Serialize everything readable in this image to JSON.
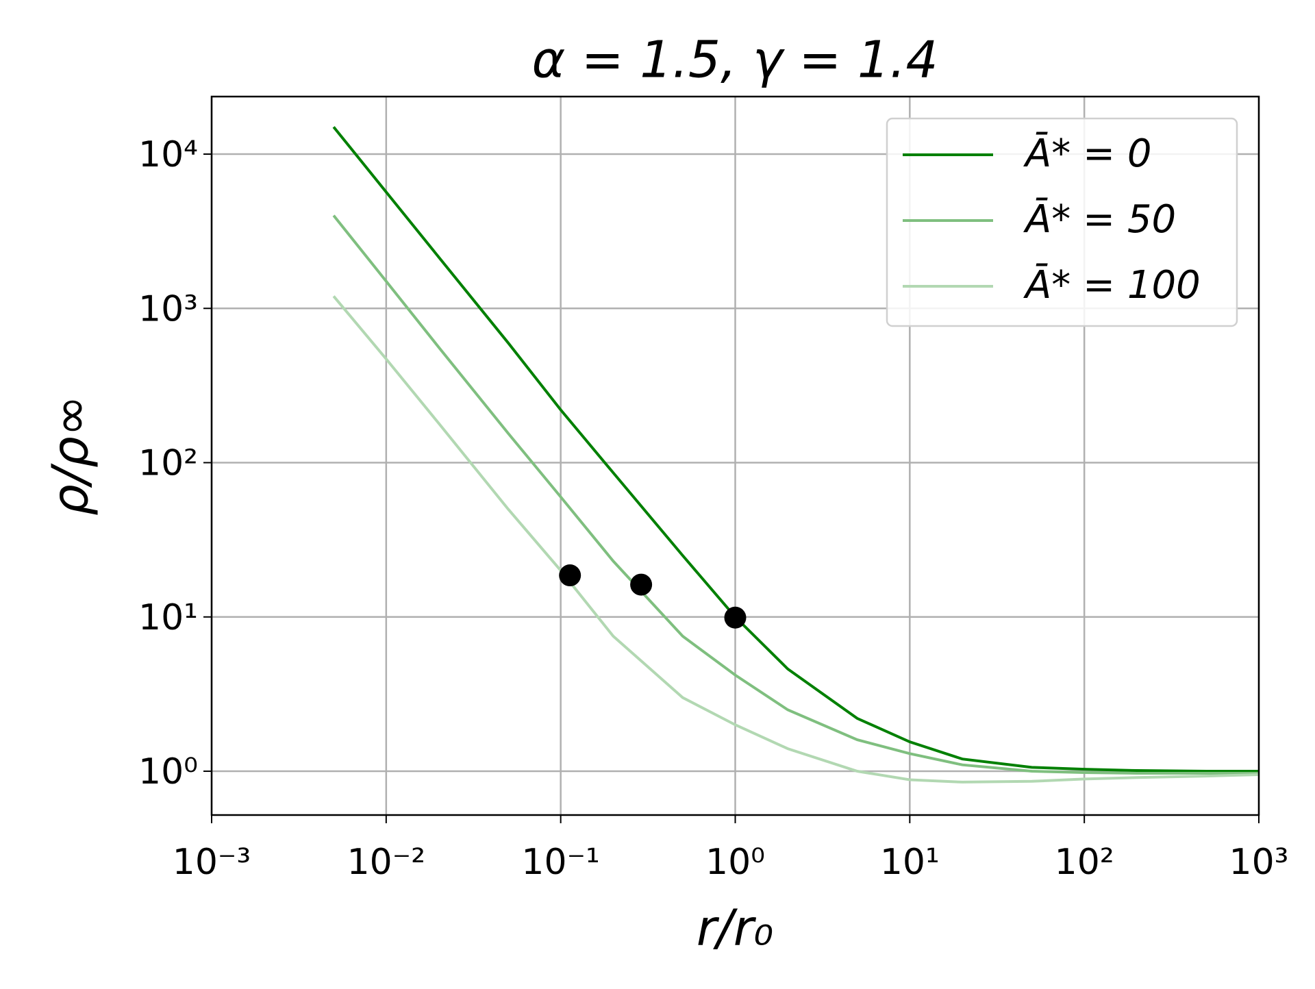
{
  "chart_data": {
    "type": "line",
    "title": "α = 1.5, γ = 1.4",
    "x_label": "r/r₀",
    "y_label": "ρ/ρ∞",
    "log_x": true,
    "log_y": true,
    "grid": true,
    "legend": "upper right",
    "xlim": [
      0.001,
      1000
    ],
    "ylim": [
      0.52,
      23600
    ],
    "xticks": [
      {
        "value": 0.001,
        "label": "10⁻³"
      },
      {
        "value": 0.01,
        "label": "10⁻²"
      },
      {
        "value": 0.1,
        "label": "10⁻¹"
      },
      {
        "value": 1,
        "label": "10⁰"
      },
      {
        "value": 10,
        "label": "10¹"
      },
      {
        "value": 100,
        "label": "10²"
      },
      {
        "value": 1000,
        "label": "10³"
      }
    ],
    "yticks": [
      {
        "value": 1,
        "label": "10⁰"
      },
      {
        "value": 10,
        "label": "10¹"
      },
      {
        "value": 100,
        "label": "10²"
      },
      {
        "value": 1000,
        "label": "10³"
      },
      {
        "value": 10000,
        "label": "10⁴"
      }
    ],
    "x": [
      0.005,
      0.01,
      0.02,
      0.05,
      0.1,
      0.2,
      0.5,
      1,
      2,
      5,
      10,
      20,
      50,
      100,
      200,
      500,
      1000
    ],
    "series": [
      {
        "name": "Ā* = 0",
        "color": "#008000",
        "values": [
          15000,
          5680,
          2150,
          598,
          220,
          86,
          25,
          10,
          4.6,
          2.2,
          1.55,
          1.2,
          1.06,
          1.03,
          1.01,
          1.0,
          1.0
        ]
      },
      {
        "name": "Ā* = 50",
        "color": "#7fbf7f",
        "values": [
          4000,
          1500,
          560,
          155,
          60,
          23,
          7.5,
          4.2,
          2.5,
          1.6,
          1.3,
          1.1,
          1.0,
          0.98,
          0.97,
          0.97,
          0.97
        ]
      },
      {
        "name": "Ā* = 100",
        "color": "#b2d8b2",
        "values": [
          1200,
          470,
          180,
          50,
          20,
          7.5,
          3.0,
          2.0,
          1.4,
          1.0,
          0.88,
          0.85,
          0.86,
          0.89,
          0.91,
          0.93,
          0.95
        ]
      }
    ],
    "markers": {
      "color": "#000000",
      "x": [
        0.113,
        0.289,
        1.0
      ],
      "values": [
        18.6,
        16.2,
        9.9
      ]
    }
  }
}
